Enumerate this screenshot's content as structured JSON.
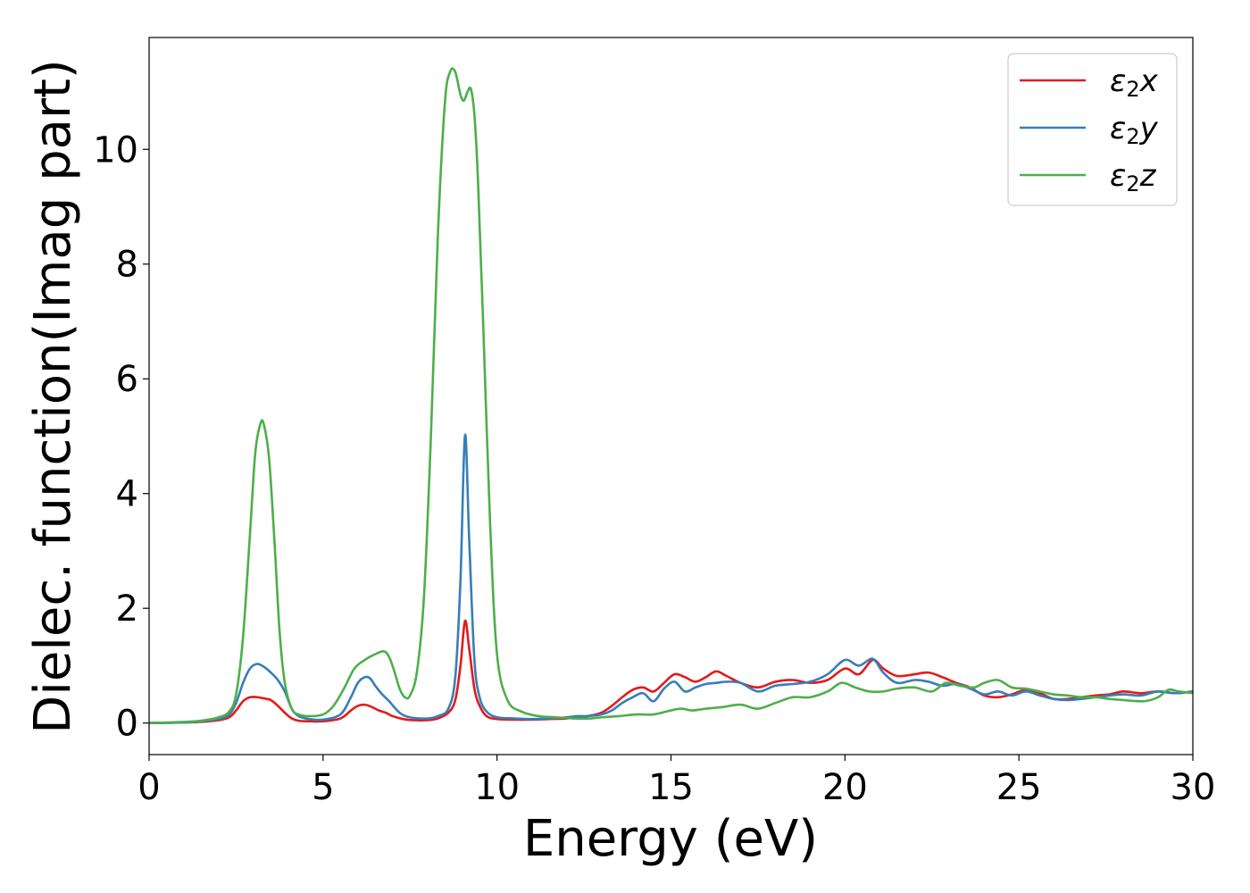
{
  "chart_data": {
    "type": "line",
    "title": "",
    "xlabel": "Energy (eV)",
    "ylabel": "Dielec. function(Imag part)",
    "xlim": [
      0,
      30
    ],
    "ylim": [
      -0.55,
      11.95
    ],
    "x_ticks": [
      0,
      5,
      10,
      15,
      20,
      25,
      30
    ],
    "y_ticks": [
      0,
      2,
      4,
      6,
      8,
      10
    ],
    "grid": false,
    "legend_position": "top-right",
    "series": [
      {
        "name": "ε2x",
        "legend_symbol": "ε",
        "legend_subscript": "2",
        "legend_suffix": "x",
        "color": "#e31a1c",
        "x": [
          0,
          1,
          1.5,
          2,
          2.3,
          2.5,
          2.7,
          2.9,
          3.1,
          3.3,
          3.5,
          3.7,
          3.9,
          4.1,
          4.3,
          4.6,
          5.0,
          5.5,
          5.8,
          6.0,
          6.2,
          6.4,
          6.6,
          6.8,
          7.0,
          7.3,
          7.6,
          8.0,
          8.3,
          8.6,
          8.8,
          8.95,
          9.08,
          9.2,
          9.35,
          9.5,
          9.7,
          10.0,
          10.5,
          11,
          11.5,
          12,
          12.3,
          12.6,
          13,
          13.3,
          13.6,
          13.9,
          14.2,
          14.5,
          14.8,
          15.1,
          15.4,
          15.7,
          16.0,
          16.3,
          16.6,
          17.0,
          17.5,
          18.0,
          18.5,
          19.0,
          19.5,
          20.0,
          20.4,
          20.8,
          21.1,
          21.5,
          22.0,
          22.4,
          22.8,
          23.2,
          23.6,
          24.0,
          24.4,
          24.8,
          25.2,
          25.6,
          26.0,
          26.4,
          26.8,
          27.2,
          27.6,
          28.0,
          28.5,
          29.0,
          29.5,
          30.0
        ],
        "values": [
          0.0,
          0.01,
          0.02,
          0.05,
          0.1,
          0.22,
          0.38,
          0.45,
          0.45,
          0.43,
          0.4,
          0.3,
          0.18,
          0.08,
          0.04,
          0.03,
          0.03,
          0.08,
          0.22,
          0.3,
          0.32,
          0.28,
          0.22,
          0.18,
          0.12,
          0.07,
          0.05,
          0.05,
          0.08,
          0.18,
          0.4,
          1.0,
          1.78,
          1.3,
          0.6,
          0.3,
          0.12,
          0.07,
          0.06,
          0.06,
          0.07,
          0.08,
          0.1,
          0.12,
          0.18,
          0.3,
          0.45,
          0.58,
          0.62,
          0.55,
          0.7,
          0.85,
          0.8,
          0.72,
          0.8,
          0.9,
          0.82,
          0.7,
          0.62,
          0.72,
          0.75,
          0.7,
          0.75,
          0.95,
          0.85,
          1.1,
          0.95,
          0.82,
          0.85,
          0.88,
          0.8,
          0.7,
          0.62,
          0.48,
          0.45,
          0.5,
          0.58,
          0.52,
          0.42,
          0.42,
          0.45,
          0.48,
          0.5,
          0.55,
          0.52,
          0.55,
          0.52,
          0.55
        ]
      },
      {
        "name": "ε2y",
        "legend_symbol": "ε",
        "legend_subscript": "2",
        "legend_suffix": "y",
        "color": "#377eb8",
        "x": [
          0,
          1,
          1.5,
          2,
          2.3,
          2.5,
          2.7,
          2.9,
          3.1,
          3.3,
          3.5,
          3.7,
          3.9,
          4.1,
          4.3,
          4.6,
          5.0,
          5.5,
          5.8,
          6.0,
          6.2,
          6.35,
          6.5,
          6.7,
          6.9,
          7.2,
          7.5,
          8.0,
          8.3,
          8.6,
          8.8,
          8.95,
          9.08,
          9.2,
          9.35,
          9.5,
          9.7,
          10.0,
          10.5,
          11,
          11.5,
          12,
          12.3,
          12.6,
          13,
          13.3,
          13.6,
          13.9,
          14.2,
          14.5,
          14.8,
          15.1,
          15.4,
          15.7,
          16.0,
          16.3,
          16.6,
          17.0,
          17.5,
          18.0,
          18.5,
          19.0,
          19.5,
          20.0,
          20.4,
          20.8,
          21.1,
          21.5,
          22.0,
          22.4,
          22.8,
          23.2,
          23.6,
          24.0,
          24.4,
          24.8,
          25.2,
          25.6,
          26.0,
          26.4,
          26.8,
          27.2,
          27.6,
          28.0,
          28.5,
          29.0,
          29.5,
          30.0
        ],
        "values": [
          0.0,
          0.01,
          0.03,
          0.07,
          0.15,
          0.35,
          0.7,
          0.95,
          1.03,
          0.98,
          0.88,
          0.75,
          0.55,
          0.25,
          0.12,
          0.07,
          0.06,
          0.15,
          0.45,
          0.7,
          0.8,
          0.78,
          0.65,
          0.5,
          0.38,
          0.18,
          0.1,
          0.08,
          0.12,
          0.25,
          0.8,
          2.5,
          5.02,
          3.2,
          1.1,
          0.45,
          0.2,
          0.1,
          0.08,
          0.07,
          0.08,
          0.1,
          0.12,
          0.12,
          0.15,
          0.22,
          0.35,
          0.45,
          0.52,
          0.38,
          0.6,
          0.72,
          0.55,
          0.62,
          0.68,
          0.7,
          0.72,
          0.7,
          0.55,
          0.65,
          0.68,
          0.72,
          0.85,
          1.1,
          1.0,
          1.12,
          0.88,
          0.7,
          0.75,
          0.72,
          0.65,
          0.68,
          0.6,
          0.5,
          0.55,
          0.48,
          0.55,
          0.48,
          0.42,
          0.4,
          0.42,
          0.45,
          0.48,
          0.5,
          0.48,
          0.55,
          0.52,
          0.55
        ]
      },
      {
        "name": "ε2z",
        "legend_symbol": "ε",
        "legend_subscript": "2",
        "legend_suffix": "z",
        "color": "#4daf4a",
        "x": [
          0,
          1,
          1.5,
          2,
          2.3,
          2.5,
          2.7,
          2.9,
          3.05,
          3.2,
          3.3,
          3.45,
          3.6,
          3.75,
          3.9,
          4.1,
          4.3,
          4.6,
          5.0,
          5.3,
          5.6,
          5.9,
          6.2,
          6.5,
          6.75,
          6.9,
          7.05,
          7.2,
          7.35,
          7.5,
          7.7,
          7.9,
          8.1,
          8.3,
          8.5,
          8.65,
          8.8,
          8.95,
          9.05,
          9.15,
          9.25,
          9.35,
          9.45,
          9.6,
          9.8,
          10.0,
          10.3,
          10.7,
          11.2,
          11.7,
          12.2,
          12.7,
          13.0,
          13.5,
          14.0,
          14.5,
          15.0,
          15.3,
          15.6,
          16.0,
          16.5,
          17.0,
          17.5,
          18.0,
          18.5,
          19.0,
          19.5,
          19.9,
          20.3,
          20.7,
          21.1,
          21.5,
          22.0,
          22.5,
          22.9,
          23.3,
          23.7,
          24.0,
          24.4,
          24.8,
          25.2,
          25.6,
          26.0,
          26.4,
          26.8,
          27.2,
          27.6,
          28.0,
          28.6,
          29.0,
          29.3,
          29.6,
          30.0
        ],
        "values": [
          0.0,
          0.02,
          0.04,
          0.1,
          0.2,
          0.5,
          1.5,
          3.3,
          4.7,
          5.22,
          5.2,
          4.6,
          3.2,
          1.6,
          0.7,
          0.25,
          0.15,
          0.12,
          0.15,
          0.3,
          0.6,
          0.95,
          1.1,
          1.2,
          1.25,
          1.15,
          0.9,
          0.6,
          0.45,
          0.48,
          0.9,
          2.2,
          5.0,
          8.5,
          10.8,
          11.35,
          11.35,
          10.95,
          10.85,
          11.0,
          11.05,
          10.6,
          9.5,
          7.0,
          3.5,
          1.2,
          0.4,
          0.2,
          0.12,
          0.1,
          0.08,
          0.08,
          0.1,
          0.12,
          0.15,
          0.15,
          0.22,
          0.25,
          0.22,
          0.25,
          0.28,
          0.32,
          0.25,
          0.35,
          0.45,
          0.45,
          0.55,
          0.7,
          0.62,
          0.55,
          0.55,
          0.6,
          0.62,
          0.55,
          0.7,
          0.65,
          0.62,
          0.7,
          0.75,
          0.62,
          0.6,
          0.55,
          0.5,
          0.48,
          0.45,
          0.45,
          0.42,
          0.4,
          0.38,
          0.45,
          0.58,
          0.55,
          0.52
        ]
      }
    ]
  }
}
